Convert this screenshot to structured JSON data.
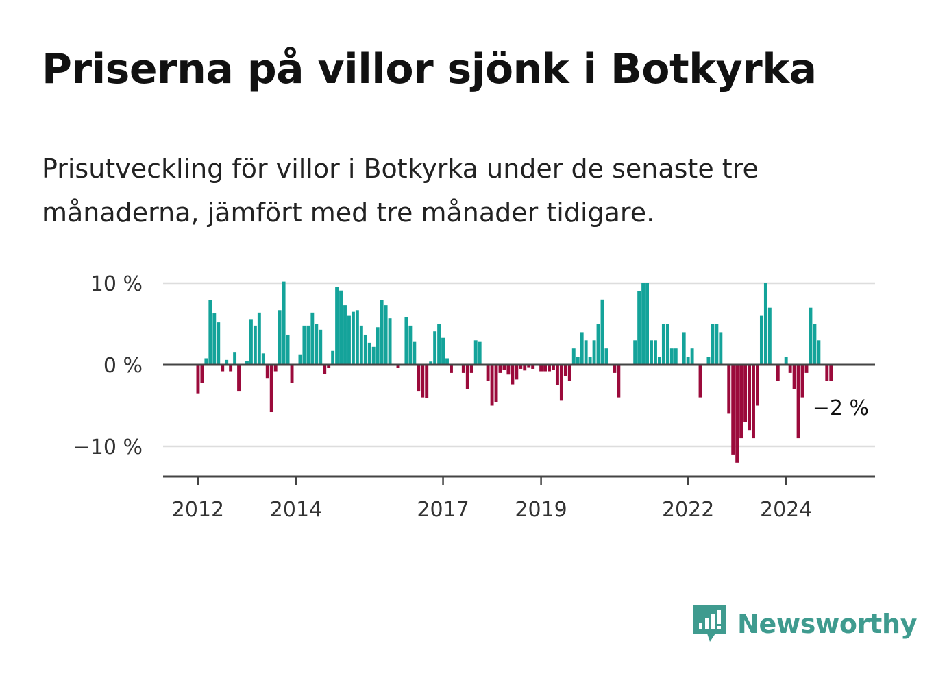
{
  "title": "Priserna på villor sjönk i Botkyrka",
  "subtitle": "Prisutveckling för villor i Botkyrka under de senaste tre månaderna, jämfört med tre månader tidigare.",
  "brand": {
    "name": "Newsworthy",
    "color": "#3f9b8f"
  },
  "colors": {
    "positive": "#14a39a",
    "negative": "#9b0a3b",
    "grid": "#dddddd",
    "axis": "#444444"
  },
  "chart_data": {
    "type": "bar",
    "ylim": [
      -14,
      10
    ],
    "yticks": [
      {
        "value": 10,
        "label": "10 %"
      },
      {
        "value": 0,
        "label": "0 %"
      },
      {
        "value": -10,
        "label": "−10 %"
      }
    ],
    "xticks": [
      {
        "year": 2012,
        "label": "2012"
      },
      {
        "year": 2014,
        "label": "2014"
      },
      {
        "year": 2017,
        "label": "2017"
      },
      {
        "year": 2019,
        "label": "2019"
      },
      {
        "year": 2022,
        "label": "2022"
      },
      {
        "year": 2024,
        "label": "2024"
      }
    ],
    "start": "2012-01",
    "last_label": "−2 %",
    "values": [
      -3.5,
      -2.2,
      0.8,
      7.9,
      6.3,
      5.2,
      -0.8,
      0.6,
      -0.8,
      1.5,
      -3.2,
      0,
      0.5,
      5.6,
      4.8,
      6.4,
      1.4,
      -1.7,
      -5.8,
      -0.8,
      6.7,
      10.2,
      3.7,
      -2.2,
      0,
      1.2,
      4.8,
      4.8,
      6.4,
      5,
      4.3,
      -1.1,
      -0.4,
      1.7,
      9.5,
      9.1,
      7.3,
      6,
      6.5,
      6.7,
      4.8,
      3.7,
      2.7,
      2.2,
      4.6,
      7.9,
      7.3,
      5.7,
      0,
      -0.4,
      0,
      5.8,
      4.8,
      2.8,
      -3.2,
      -4,
      -4.1,
      0.4,
      4.1,
      5,
      3.3,
      0.8,
      -1,
      0,
      0,
      -1,
      -3,
      -1,
      3,
      2.8,
      0,
      -2,
      -5,
      -4.6,
      -1,
      -0.6,
      -1.2,
      -2.4,
      -1.8,
      -0.5,
      -0.7,
      -0.3,
      -0.5,
      0,
      -0.8,
      -0.8,
      -0.8,
      -0.6,
      -2.5,
      -4.4,
      -1.4,
      -2,
      2,
      1,
      4,
      3,
      1,
      3,
      5,
      8,
      2,
      0,
      -1,
      -4,
      0,
      0,
      0,
      3,
      9,
      10,
      10,
      3,
      3,
      1,
      5,
      5,
      2,
      2,
      0,
      4,
      1,
      2,
      0,
      -4,
      0,
      1,
      5,
      5,
      4,
      0,
      -6,
      -11,
      -12,
      -9,
      -7,
      -8,
      -9,
      -5,
      6,
      10,
      7,
      0,
      -2,
      0,
      1,
      -1,
      -3,
      -9,
      -4,
      -1,
      7,
      5,
      3,
      0,
      -2,
      -2
    ]
  }
}
